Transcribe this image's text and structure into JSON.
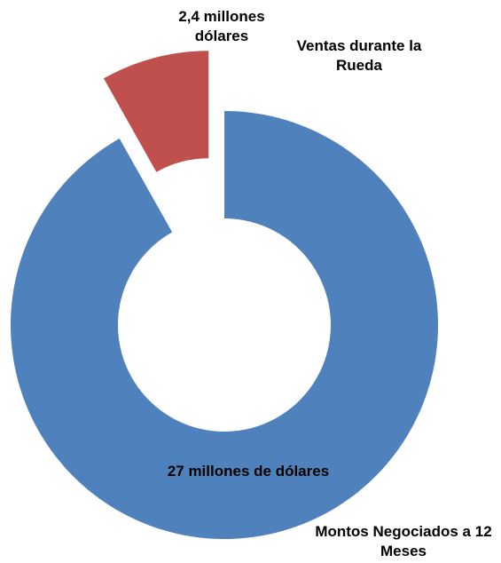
{
  "chart_data": {
    "type": "donut",
    "categories": [
      "Montos Negociados a 12 Meses",
      "Ventas durante la Rueda"
    ],
    "values": [
      27,
      2.4
    ],
    "value_labels": [
      "27 millones de dólares",
      "2,4 millones dólares"
    ],
    "colors": [
      "#4f81bd",
      "#c0504d"
    ]
  }
}
